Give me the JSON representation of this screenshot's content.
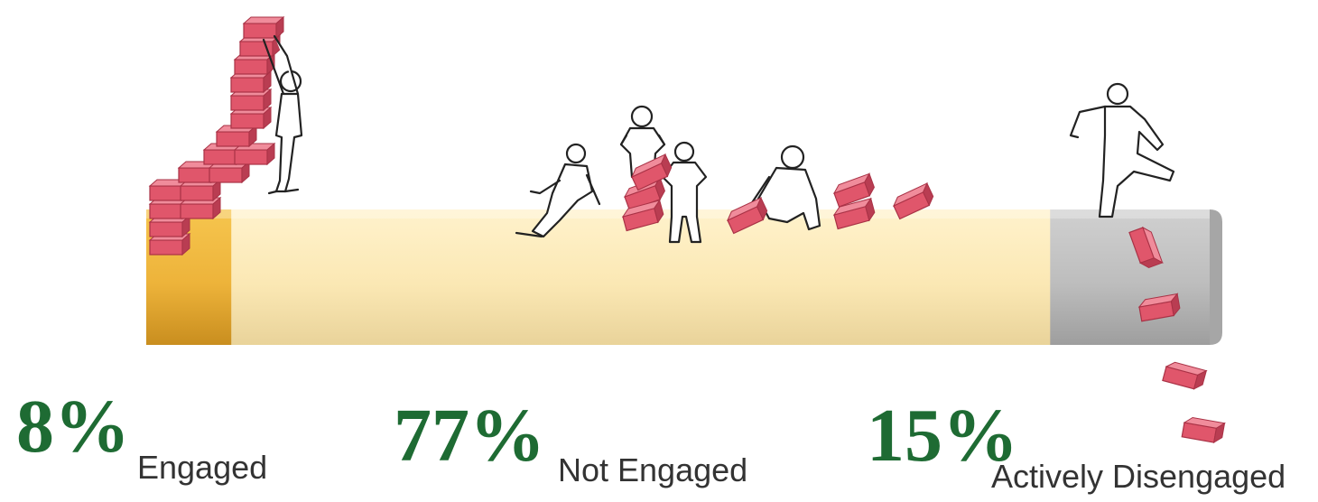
{
  "chart_data": {
    "type": "bar",
    "orientation": "horizontal-stacked",
    "categories": [
      "Engaged",
      "Not Engaged",
      "Actively Disengaged"
    ],
    "values": [
      8,
      77,
      15
    ],
    "value_labels": [
      "8%",
      "77%",
      "15%"
    ],
    "unit": "%",
    "colors": [
      "#EDB33A",
      "#FBE8B4",
      "#BDBDBD"
    ],
    "label_color": "#1E6B33",
    "caption_color": "#333333",
    "brick_color": "#E0566B",
    "title": "",
    "xlabel": "",
    "ylabel": "",
    "legend": "none",
    "grid": false
  }
}
